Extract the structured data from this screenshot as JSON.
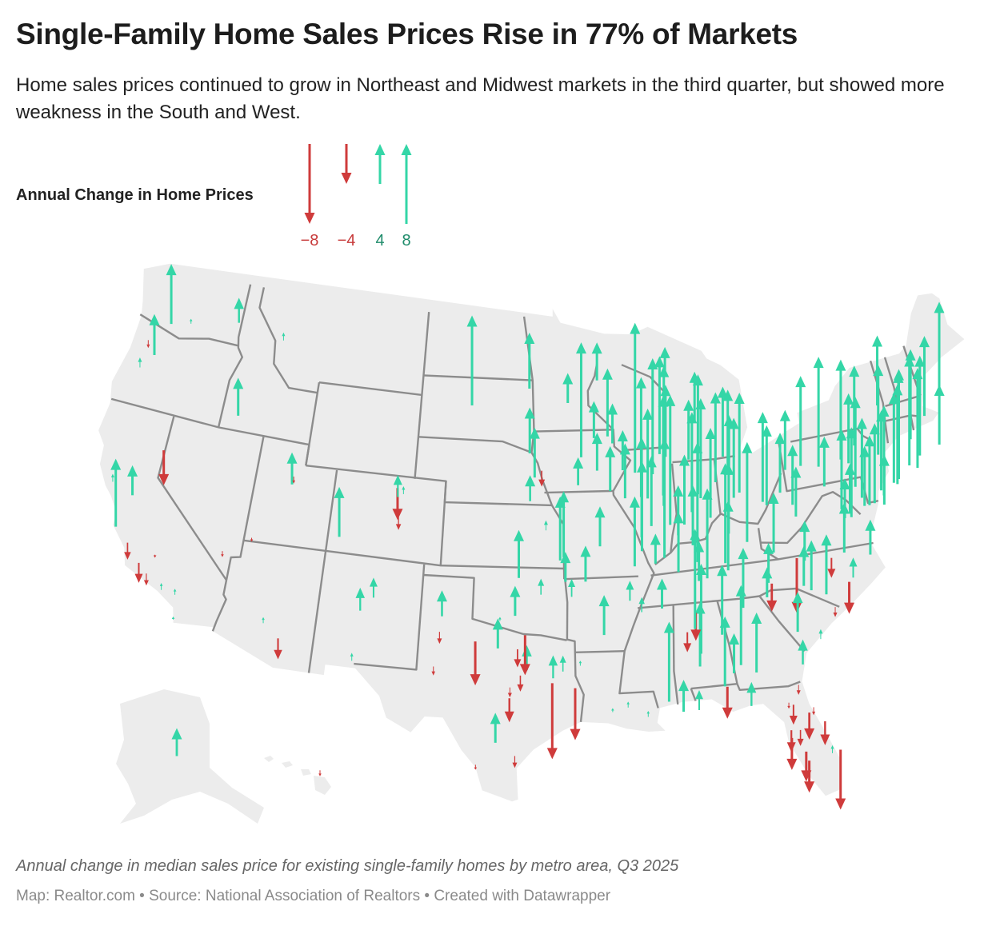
{
  "header": {
    "title": "Single-Family Home Sales Prices Rise in 77% of Markets",
    "subtitle": "Home sales prices continued to grow in Northeast and Midwest markets in the third quarter, but showed more weakness in the South and West."
  },
  "legend": {
    "title": "Annual Change in Home Prices",
    "items": [
      {
        "value": -8,
        "label": "−8"
      },
      {
        "value": -4,
        "label": "−4"
      },
      {
        "value": 4,
        "label": "4"
      },
      {
        "value": 8,
        "label": "8"
      }
    ]
  },
  "colors": {
    "increase": "#34d6a7",
    "decrease": "#cf3b3b",
    "increase_label": "#1f8c6b",
    "decrease_label": "#c73a3a",
    "land": "#ececec",
    "state_border": "#8c8c8c"
  },
  "map": {
    "projection": "albers-usa",
    "markers": [
      {
        "lon": -122.33,
        "lat": 47.61,
        "change": 6.0
      },
      {
        "lon": -122.68,
        "lat": 45.52,
        "change": 4.1
      },
      {
        "lon": -122.9,
        "lat": 45.0,
        "change": -0.8
      },
      {
        "lon": -123.09,
        "lat": 44.05,
        "change": 1.0
      },
      {
        "lon": -117.43,
        "lat": 47.66,
        "change": 2.5
      },
      {
        "lon": -116.2,
        "lat": 43.62,
        "change": 3.8
      },
      {
        "lon": -114.0,
        "lat": 46.87,
        "change": 0.8
      },
      {
        "lon": -120.5,
        "lat": 46.6,
        "change": 0.5
      },
      {
        "lon": -119.81,
        "lat": 39.53,
        "change": -3.5
      },
      {
        "lon": -121.49,
        "lat": 38.58,
        "change": 3.0
      },
      {
        "lon": -122.27,
        "lat": 37.8,
        "change": 6.8
      },
      {
        "lon": -122.7,
        "lat": 38.44,
        "change": 0.8
      },
      {
        "lon": -120.66,
        "lat": 35.28,
        "change": -1.7
      },
      {
        "lon": -119.7,
        "lat": 34.42,
        "change": -2.0
      },
      {
        "lon": -119.18,
        "lat": 34.2,
        "change": -1.2
      },
      {
        "lon": -118.24,
        "lat": 34.05,
        "change": 0.7
      },
      {
        "lon": -117.16,
        "lat": 32.72,
        "change": 0.3
      },
      {
        "lon": -117.4,
        "lat": 33.95,
        "change": 0.6
      },
      {
        "lon": -119.02,
        "lat": 35.37,
        "change": -0.3
      },
      {
        "lon": -115.14,
        "lat": 36.17,
        "change": -0.6
      },
      {
        "lon": -112.07,
        "lat": 33.45,
        "change": 0.6
      },
      {
        "lon": -110.97,
        "lat": 32.22,
        "change": -2.1
      },
      {
        "lon": -111.89,
        "lat": 40.76,
        "change": 3.2
      },
      {
        "lon": -111.66,
        "lat": 40.23,
        "change": -0.7
      },
      {
        "lon": -111.97,
        "lat": 41.22,
        "change": 0.8
      },
      {
        "lon": -113.58,
        "lat": 37.1,
        "change": -0.4
      },
      {
        "lon": -104.99,
        "lat": 39.74,
        "change": -3.2
      },
      {
        "lon": -105.08,
        "lat": 40.59,
        "change": 2.2
      },
      {
        "lon": -104.7,
        "lat": 40.42,
        "change": 0.8
      },
      {
        "lon": -104.82,
        "lat": 38.83,
        "change": -1.3
      },
      {
        "lon": -108.55,
        "lat": 39.06,
        "change": 5.0
      },
      {
        "lon": -106.65,
        "lat": 35.08,
        "change": 2.3
      },
      {
        "lon": -105.94,
        "lat": 35.69,
        "change": 2.0
      },
      {
        "lon": -106.76,
        "lat": 32.32,
        "change": 0.8
      },
      {
        "lon": -100.78,
        "lat": 46.81,
        "change": 9.0
      },
      {
        "lon": -96.79,
        "lat": 46.88,
        "change": 5.6
      },
      {
        "lon": -96.73,
        "lat": 43.55,
        "change": 4.6
      },
      {
        "lon": -95.94,
        "lat": 41.26,
        "change": -1.6
      },
      {
        "lon": -96.68,
        "lat": 40.81,
        "change": 2.6
      },
      {
        "lon": -96.4,
        "lat": 42.5,
        "change": 5.0
      },
      {
        "lon": -97.34,
        "lat": 37.69,
        "change": 4.8
      },
      {
        "lon": -95.68,
        "lat": 39.05,
        "change": 1.0
      },
      {
        "lon": -94.58,
        "lat": 39.1,
        "change": 6.6
      },
      {
        "lon": -94.8,
        "lat": 38.9,
        "change": 6.4
      },
      {
        "lon": -97.52,
        "lat": 35.47,
        "change": 3.0
      },
      {
        "lon": -95.99,
        "lat": 36.15,
        "change": 1.6
      },
      {
        "lon": -98.39,
        "lat": 34.6,
        "change": 0.4
      },
      {
        "lon": -101.83,
        "lat": 35.22,
        "change": 2.6
      },
      {
        "lon": -101.85,
        "lat": 33.58,
        "change": -1.2
      },
      {
        "lon": -98.49,
        "lat": 33.91,
        "change": 3.0
      },
      {
        "lon": -93.29,
        "lat": 37.21,
        "change": 3.6
      },
      {
        "lon": -94.51,
        "lat": 37.08,
        "change": 3.0
      },
      {
        "lon": -92.29,
        "lat": 34.75,
        "change": 4.0
      },
      {
        "lon": -94.16,
        "lat": 36.08,
        "change": 1.8
      },
      {
        "lon": -90.7,
        "lat": 35.84,
        "change": 2.0
      },
      {
        "lon": -92.33,
        "lat": 38.95,
        "change": 4.0
      },
      {
        "lon": -90.2,
        "lat": 38.63,
        "change": 7.0
      },
      {
        "lon": -96.8,
        "lat": 32.78,
        "change": 2.5
      },
      {
        "lon": -97.33,
        "lat": 32.75,
        "change": -1.8
      },
      {
        "lon": -96.9,
        "lat": 32.9,
        "change": -4.0
      },
      {
        "lon": -99.73,
        "lat": 32.45,
        "change": -4.4
      },
      {
        "lon": -97.15,
        "lat": 31.55,
        "change": -1.6
      },
      {
        "lon": -97.74,
        "lat": 30.27,
        "change": -2.4
      },
      {
        "lon": -98.49,
        "lat": 29.42,
        "change": 3.0
      },
      {
        "lon": -97.73,
        "lat": 31.12,
        "change": -1.0
      },
      {
        "lon": -95.37,
        "lat": 29.76,
        "change": -7.6
      },
      {
        "lon": -94.1,
        "lat": 30.08,
        "change": -5.2
      },
      {
        "lon": -95.3,
        "lat": 32.35,
        "change": 2.3
      },
      {
        "lon": -94.74,
        "lat": 32.5,
        "change": 1.6
      },
      {
        "lon": -99.5,
        "lat": 27.5,
        "change": -0.5
      },
      {
        "lon": -97.4,
        "lat": 27.8,
        "change": -1.2
      },
      {
        "lon": -102.08,
        "lat": 31.99,
        "change": -0.9
      },
      {
        "lon": -93.75,
        "lat": 32.5,
        "change": 0.5
      },
      {
        "lon": -91.15,
        "lat": 30.45,
        "change": 0.6
      },
      {
        "lon": -92.02,
        "lat": 30.22,
        "change": 0.4
      },
      {
        "lon": -90.07,
        "lat": 29.95,
        "change": 0.6
      },
      {
        "lon": -88.7,
        "lat": 32.36,
        "change": 8.0
      },
      {
        "lon": -88.04,
        "lat": 30.69,
        "change": 3.2
      },
      {
        "lon": -87.2,
        "lat": 30.42,
        "change": 2.0
      },
      {
        "lon": -86.8,
        "lat": 33.52,
        "change": 6.4
      },
      {
        "lon": -86.59,
        "lat": 34.73,
        "change": 9.0
      },
      {
        "lon": -87.57,
        "lat": 33.21,
        "change": -2.0
      },
      {
        "lon": -87.0,
        "lat": 33.9,
        "change": -2.8
      },
      {
        "lon": -85.48,
        "lat": 32.6,
        "change": 7.0
      },
      {
        "lon": -84.39,
        "lat": 33.75,
        "change": 8.0
      },
      {
        "lon": -83.63,
        "lat": 32.84,
        "change": 6.0
      },
      {
        "lon": -84.98,
        "lat": 32.46,
        "change": 4.0
      },
      {
        "lon": -81.1,
        "lat": 32.08,
        "change": 2.5
      },
      {
        "lon": -84.28,
        "lat": 30.44,
        "change": 2.4
      },
      {
        "lon": -85.66,
        "lat": 30.16,
        "change": -3.2
      },
      {
        "lon": -81.66,
        "lat": 30.33,
        "change": -1.0
      },
      {
        "lon": -82.32,
        "lat": 29.65,
        "change": -0.6
      },
      {
        "lon": -82.14,
        "lat": 29.19,
        "change": -2.0
      },
      {
        "lon": -81.38,
        "lat": 28.54,
        "change": -2.7
      },
      {
        "lon": -82.46,
        "lat": 27.95,
        "change": -2.2
      },
      {
        "lon": -81.95,
        "lat": 28.04,
        "change": -1.6
      },
      {
        "lon": -82.53,
        "lat": 27.34,
        "change": -3.2
      },
      {
        "lon": -81.87,
        "lat": 26.64,
        "change": -3.0
      },
      {
        "lon": -81.79,
        "lat": 26.14,
        "change": -3.2
      },
      {
        "lon": -80.19,
        "lat": 25.76,
        "change": -6.0
      },
      {
        "lon": -80.35,
        "lat": 27.27,
        "change": 0.8
      },
      {
        "lon": -80.6,
        "lat": 28.08,
        "change": -2.4
      },
      {
        "lon": -81.02,
        "lat": 29.21,
        "change": -0.8
      },
      {
        "lon": -93.27,
        "lat": 44.98,
        "change": 11.5
      },
      {
        "lon": -92.1,
        "lat": 46.79,
        "change": 3.8
      },
      {
        "lon": -94.16,
        "lat": 45.56,
        "change": 3.0
      },
      {
        "lon": -92.46,
        "lat": 44.02,
        "change": 3.7
      },
      {
        "lon": -93.6,
        "lat": 41.59,
        "change": 2.8
      },
      {
        "lon": -92.33,
        "lat": 42.49,
        "change": 3.8
      },
      {
        "lon": -90.58,
        "lat": 41.52,
        "change": 5.5
      },
      {
        "lon": -91.53,
        "lat": 41.66,
        "change": 4.5
      },
      {
        "lon": -90.66,
        "lat": 42.5,
        "change": 4.0
      },
      {
        "lon": -89.63,
        "lat": 44.96,
        "change": 15.0
      },
      {
        "lon": -88.54,
        "lat": 44.02,
        "change": 11.6
      },
      {
        "lon": -88.02,
        "lat": 44.52,
        "change": 9.8
      },
      {
        "lon": -87.71,
        "lat": 43.75,
        "change": 7.2
      },
      {
        "lon": -89.4,
        "lat": 43.07,
        "change": 12.0
      },
      {
        "lon": -87.91,
        "lat": 43.04,
        "change": 14.0
      },
      {
        "lon": -91.5,
        "lat": 44.81,
        "change": 6.8
      },
      {
        "lon": -91.24,
        "lat": 43.8,
        "change": 4.0
      },
      {
        "lon": -88.0,
        "lat": 42.59,
        "change": 10.0
      },
      {
        "lon": -89.05,
        "lat": 42.27,
        "change": 9.0
      },
      {
        "lon": -87.63,
        "lat": 41.88,
        "change": 13.0
      },
      {
        "lon": -88.2,
        "lat": 40.11,
        "change": 12.0
      },
      {
        "lon": -89.59,
        "lat": 40.69,
        "change": 10.0
      },
      {
        "lon": -89.65,
        "lat": 39.8,
        "change": 9.0
      },
      {
        "lon": -88.99,
        "lat": 40.48,
        "change": 7.0
      },
      {
        "lon": -89.0,
        "lat": 37.75,
        "change": 3.0
      },
      {
        "lon": -83.05,
        "lat": 42.33,
        "change": 10.0
      },
      {
        "lon": -85.67,
        "lat": 42.96,
        "change": 12.0
      },
      {
        "lon": -84.55,
        "lat": 42.73,
        "change": 9.0
      },
      {
        "lon": -85.59,
        "lat": 42.29,
        "change": 10.0
      },
      {
        "lon": -83.69,
        "lat": 43.01,
        "change": 8.0
      },
      {
        "lon": -83.95,
        "lat": 43.42,
        "change": 7.0
      },
      {
        "lon": -86.25,
        "lat": 43.23,
        "change": 6.0
      },
      {
        "lon": -85.62,
        "lat": 44.76,
        "change": 5.0
      },
      {
        "lon": -83.74,
        "lat": 42.28,
        "change": 6.0
      },
      {
        "lon": -87.4,
        "lat": 46.55,
        "change": 3.0
      },
      {
        "lon": -86.16,
        "lat": 39.77,
        "change": 12.0
      },
      {
        "lon": -85.14,
        "lat": 41.08,
        "change": 9.0
      },
      {
        "lon": -86.25,
        "lat": 41.68,
        "change": 10.0
      },
      {
        "lon": -87.57,
        "lat": 37.97,
        "change": 6.0
      },
      {
        "lon": -86.53,
        "lat": 39.17,
        "change": 6.0
      },
      {
        "lon": -87.41,
        "lat": 39.47,
        "change": 5.0
      },
      {
        "lon": -86.9,
        "lat": 40.42,
        "change": 7.0
      },
      {
        "lon": -82.99,
        "lat": 39.96,
        "change": 10.0
      },
      {
        "lon": -81.69,
        "lat": 41.5,
        "change": 9.0
      },
      {
        "lon": -84.51,
        "lat": 39.1,
        "change": 10.0
      },
      {
        "lon": -83.54,
        "lat": 41.65,
        "change": 8.0
      },
      {
        "lon": -81.52,
        "lat": 41.08,
        "change": 8.0
      },
      {
        "lon": -84.19,
        "lat": 39.76,
        "change": 7.0
      },
      {
        "lon": -80.65,
        "lat": 41.1,
        "change": 6.0
      },
      {
        "lon": -78.88,
        "lat": 42.89,
        "change": 9.0
      },
      {
        "lon": -77.61,
        "lat": 43.16,
        "change": 11.0
      },
      {
        "lon": -76.15,
        "lat": 43.05,
        "change": 10.0
      },
      {
        "lon": -73.76,
        "lat": 42.65,
        "change": 9.0
      },
      {
        "lon": -75.91,
        "lat": 42.1,
        "change": 7.0
      },
      {
        "lon": -75.23,
        "lat": 43.1,
        "change": 8.0
      },
      {
        "lon": -79.99,
        "lat": 40.44,
        "change": 6.0
      },
      {
        "lon": -75.17,
        "lat": 39.95,
        "change": 7.0
      },
      {
        "lon": -76.88,
        "lat": 40.27,
        "change": 8.0
      },
      {
        "lon": -76.31,
        "lat": 40.04,
        "change": 9.0
      },
      {
        "lon": -75.47,
        "lat": 40.6,
        "change": 8.0
      },
      {
        "lon": -75.66,
        "lat": 41.41,
        "change": 9.0
      },
      {
        "lon": -77.86,
        "lat": 40.79,
        "change": 5.0
      },
      {
        "lon": -80.09,
        "lat": 42.13,
        "change": 6.0
      },
      {
        "lon": -74.0,
        "lat": 40.71,
        "change": 9.0
      },
      {
        "lon": -74.17,
        "lat": 40.74,
        "change": 8.0
      },
      {
        "lon": -72.92,
        "lat": 41.31,
        "change": 10.0
      },
      {
        "lon": -72.68,
        "lat": 41.76,
        "change": 11.0
      },
      {
        "lon": -73.2,
        "lat": 41.18,
        "change": 9.0
      },
      {
        "lon": -71.06,
        "lat": 42.36,
        "change": 10.0
      },
      {
        "lon": -71.8,
        "lat": 42.26,
        "change": 11.0
      },
      {
        "lon": -72.59,
        "lat": 42.1,
        "change": 9.0
      },
      {
        "lon": -71.41,
        "lat": 41.82,
        "change": 10.0
      },
      {
        "lon": -71.46,
        "lat": 42.99,
        "change": 9.0
      },
      {
        "lon": -70.26,
        "lat": 43.66,
        "change": 8.0
      },
      {
        "lon": -73.21,
        "lat": 44.48,
        "change": 7.0
      },
      {
        "lon": -70.0,
        "lat": 41.7,
        "change": 6.0
      },
      {
        "lon": -74.76,
        "lat": 40.22,
        "change": 8.0
      },
      {
        "lon": -74.4,
        "lat": 39.36,
        "change": 5.0
      },
      {
        "lon": -75.55,
        "lat": 39.74,
        "change": 6.0
      },
      {
        "lon": -76.61,
        "lat": 39.29,
        "change": 5.0
      },
      {
        "lon": -77.04,
        "lat": 38.9,
        "change": 4.0
      },
      {
        "lon": -68.77,
        "lat": 44.8,
        "change": 9.0
      },
      {
        "lon": -81.63,
        "lat": 38.35,
        "change": 6.0
      },
      {
        "lon": -79.96,
        "lat": 39.63,
        "change": 5.0
      },
      {
        "lon": -77.43,
        "lat": 37.54,
        "change": 5.0
      },
      {
        "lon": -76.0,
        "lat": 36.85,
        "change": 3.5
      },
      {
        "lon": -79.94,
        "lat": 37.27,
        "change": 4.0
      },
      {
        "lon": -79.79,
        "lat": 36.07,
        "change": 5.0
      },
      {
        "lon": -80.24,
        "lat": 36.1,
        "change": 4.0
      },
      {
        "lon": -82.55,
        "lat": 35.6,
        "change": 3.0
      },
      {
        "lon": -78.9,
        "lat": 35.99,
        "change": 6.0
      },
      {
        "lon": -80.84,
        "lat": 35.23,
        "change": -5.5
      },
      {
        "lon": -78.64,
        "lat": 35.78,
        "change": -2.0
      },
      {
        "lon": -77.94,
        "lat": 34.23,
        "change": -3.2
      },
      {
        "lon": -82.4,
        "lat": 34.85,
        "change": -2.8
      },
      {
        "lon": -81.03,
        "lat": 34.0,
        "change": 4.0
      },
      {
        "lon": -79.93,
        "lat": 32.78,
        "change": 1.0
      },
      {
        "lon": -78.89,
        "lat": 33.69,
        "change": -1.0
      },
      {
        "lon": -77.37,
        "lat": 35.6,
        "change": 2.0
      },
      {
        "lon": -86.78,
        "lat": 36.16,
        "change": 10.0
      },
      {
        "lon": -85.31,
        "lat": 35.05,
        "change": 7.0
      },
      {
        "lon": -83.92,
        "lat": 35.96,
        "change": 6.0
      },
      {
        "lon": -90.05,
        "lat": 35.15,
        "change": 1.5
      },
      {
        "lon": -88.81,
        "lat": 35.61,
        "change": 3.0
      },
      {
        "lon": -82.3,
        "lat": 36.5,
        "change": 4.0
      },
      {
        "lon": -85.76,
        "lat": 38.25,
        "change": 9.0
      },
      {
        "lon": -84.5,
        "lat": 38.04,
        "change": 7.0
      },
      {
        "lon": -86.44,
        "lat": 36.99,
        "change": 4.0
      },
      {
        "lon": -149.9,
        "lat": 61.22,
        "change": 2.8,
        "inset": "alaska"
      },
      {
        "lon": -157.86,
        "lat": 21.31,
        "change": -0.6,
        "inset": "hawaii"
      }
    ]
  },
  "footer": {
    "note": "Annual change in median sales price for existing single-family homes by metro area, Q3 2025",
    "source": "Map: Realtor.com • Source: National Association of Realtors • Created with Datawrapper"
  }
}
